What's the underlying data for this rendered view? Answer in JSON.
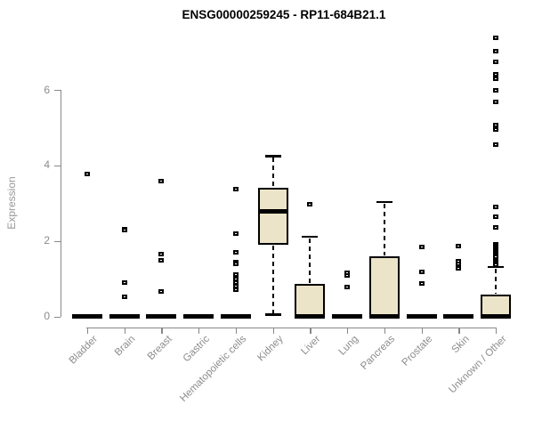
{
  "chart_data": {
    "type": "boxplot",
    "title": "ENSG00000259245 - RP11-684B21.1",
    "xlabel": "",
    "ylabel": "Expression",
    "ylim": [
      0,
      7.6
    ],
    "yticks": [
      0,
      2,
      4,
      6
    ],
    "grid": false,
    "legend": "none",
    "categories": [
      "Bladder",
      "Brain",
      "Breast",
      "Gastric",
      "Hematopoietic cells",
      "Kidney",
      "Liver",
      "Lung",
      "Pancreas",
      "Prostate",
      "Skin",
      "Unknown / Other"
    ],
    "boxes": [
      {
        "category": "Bladder",
        "q1": 0,
        "median": 0,
        "q3": 0,
        "whisker_low": 0,
        "whisker_high": 0,
        "outliers": [
          3.77
        ]
      },
      {
        "category": "Brain",
        "q1": 0,
        "median": 0,
        "q3": 0,
        "whisker_low": 0,
        "whisker_high": 0,
        "outliers": [
          2.31,
          2.28,
          0.9,
          0.51
        ]
      },
      {
        "category": "Breast",
        "q1": 0,
        "median": 0,
        "q3": 0,
        "whisker_low": 0,
        "whisker_high": 0,
        "outliers": [
          3.58,
          1.66,
          1.49,
          0.67
        ]
      },
      {
        "category": "Gastric",
        "q1": 0,
        "median": 0,
        "q3": 0,
        "whisker_low": 0,
        "whisker_high": 0,
        "outliers": []
      },
      {
        "category": "Hematopoietic cells",
        "q1": 0,
        "median": 0,
        "q3": 0,
        "whisker_low": 0,
        "whisker_high": 0,
        "outliers": [
          3.37,
          2.2,
          1.7,
          1.45,
          1.4,
          1.1,
          1.0,
          0.9,
          0.8,
          0.7
        ]
      },
      {
        "category": "Kidney",
        "q1": 1.9,
        "median": 2.79,
        "q3": 3.4,
        "whisker_low": 0.05,
        "whisker_high": 4.25,
        "outliers": []
      },
      {
        "category": "Liver",
        "q1": 0,
        "median": 0,
        "q3": 0.87,
        "whisker_low": 0,
        "whisker_high": 2.12,
        "outliers": [
          2.98
        ]
      },
      {
        "category": "Lung",
        "q1": 0,
        "median": 0,
        "q3": 0,
        "whisker_low": 0,
        "whisker_high": 0,
        "outliers": [
          1.15,
          1.08,
          0.77
        ]
      },
      {
        "category": "Pancreas",
        "q1": 0,
        "median": 0,
        "q3": 1.59,
        "whisker_low": 0,
        "whisker_high": 3.04,
        "outliers": []
      },
      {
        "category": "Prostate",
        "q1": 0,
        "median": 0,
        "q3": 0,
        "whisker_low": 0,
        "whisker_high": 0,
        "outliers": [
          1.83,
          1.19,
          0.88
        ]
      },
      {
        "category": "Skin",
        "q1": 0,
        "median": 0,
        "q3": 0,
        "whisker_low": 0,
        "whisker_high": 0,
        "outliers": [
          1.87,
          1.47,
          1.38,
          1.28
        ]
      },
      {
        "category": "Unknown / Other",
        "q1": 0,
        "median": 0,
        "q3": 0.57,
        "whisker_low": 0,
        "whisker_high": 1.31,
        "outliers": [
          7.39,
          7.04,
          6.75,
          6.42,
          6.35,
          6.29,
          5.98,
          5.69,
          5.08,
          4.96,
          4.56,
          2.89,
          2.63,
          2.35,
          1.92,
          1.87,
          1.82,
          1.77,
          1.72,
          1.67,
          1.62,
          1.57,
          1.52,
          1.47,
          1.42,
          1.37
        ]
      }
    ],
    "colors": {
      "box_fill": "#ece4c8",
      "box_border": "#000000",
      "whisker": "#000000",
      "outlier": "#000000",
      "axis": "#888888",
      "tick_label": "#8c8c8c",
      "title": "#000000"
    }
  }
}
